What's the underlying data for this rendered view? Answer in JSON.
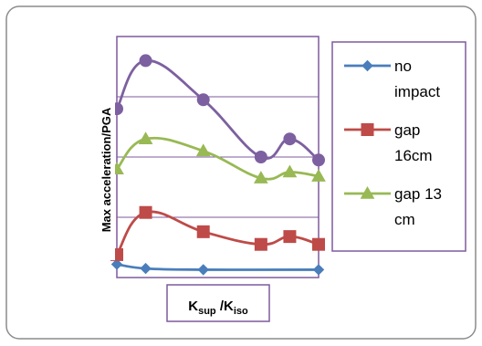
{
  "chart_data": {
    "type": "line",
    "title": "",
    "xlabel_main": "K",
    "xlabel_sub1": "sup",
    "xlabel_mid": " /K",
    "xlabel_sub2": "iso",
    "ylabel": "Max acceleration/PGA",
    "x": [
      0,
      1,
      2,
      3,
      4,
      5,
      6,
      7
    ],
    "xlim": [
      0,
      7
    ],
    "ylim": [
      0,
      4
    ],
    "grid": true,
    "legend_position": "right",
    "series": [
      {
        "name": "no impact",
        "label_line1": "no",
        "label_line2": "impact",
        "color": "#4a7ebb",
        "marker": "diamond",
        "x": [
          0,
          1,
          3,
          7
        ],
        "values": [
          0.22,
          0.15,
          0.13,
          0.13
        ]
      },
      {
        "name": "gap 16cm",
        "label_line1": "gap",
        "label_line2": "16cm",
        "color": "#be4b48",
        "marker": "square",
        "x": [
          0,
          1,
          3,
          5,
          6,
          7
        ],
        "values": [
          0.38,
          1.08,
          0.76,
          0.55,
          0.68,
          0.55
        ]
      },
      {
        "name": "gap 13 cm",
        "label_line1": "gap 13",
        "label_line2": "cm",
        "color": "#98b954",
        "marker": "triangle",
        "x": [
          0,
          1,
          3,
          5,
          6,
          7
        ],
        "values": [
          1.8,
          2.3,
          2.1,
          1.65,
          1.75,
          1.68
        ]
      },
      {
        "name": "",
        "color": "#7d60a0",
        "marker": "circle",
        "x": [
          0,
          1,
          3,
          5,
          6,
          7
        ],
        "values": [
          2.8,
          3.6,
          2.95,
          2.0,
          2.3,
          1.95
        ]
      }
    ]
  }
}
